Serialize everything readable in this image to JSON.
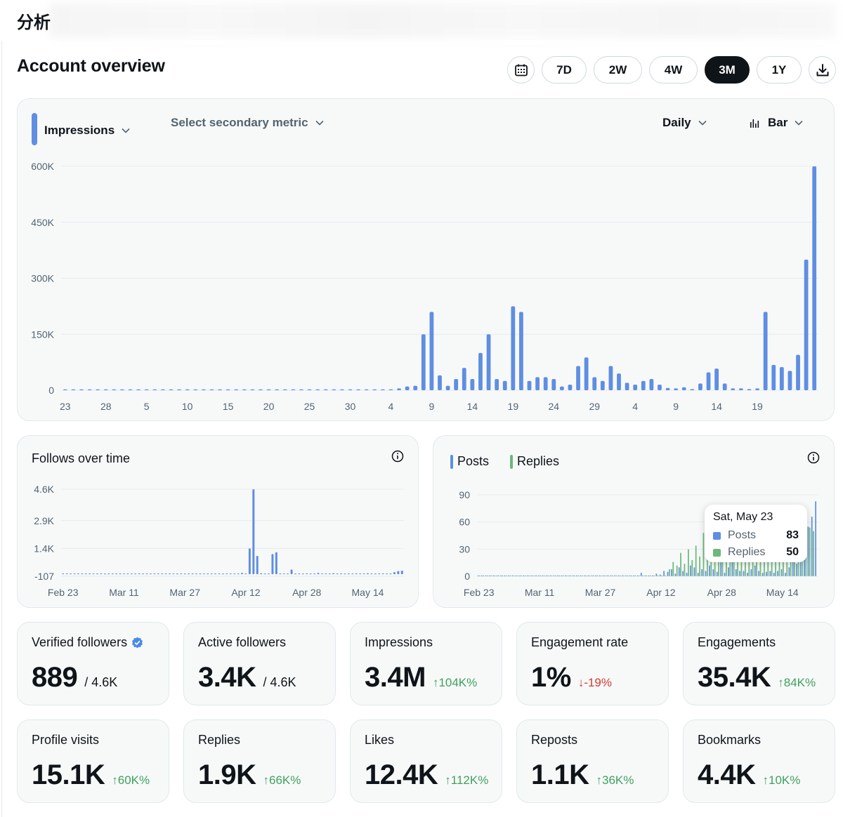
{
  "app": {
    "title": "分析"
  },
  "overview": {
    "title": "Account overview",
    "ranges": [
      "7D",
      "2W",
      "4W",
      "3M",
      "1Y"
    ],
    "active_range": "3M"
  },
  "main_chart": {
    "primary_metric": "Impressions",
    "secondary_metric_placeholder": "Select secondary metric",
    "granularity": "Daily",
    "chart_type_label": "Bar"
  },
  "follows_card": {
    "title": "Follows over time"
  },
  "posts_card": {
    "legend": [
      {
        "name": "Posts",
        "color": "#5f8ee2"
      },
      {
        "name": "Replies",
        "color": "#6cb87b"
      }
    ],
    "tooltip": {
      "date": "Sat, May 23",
      "posts_label": "Posts",
      "posts_value": "83",
      "replies_label": "Replies",
      "replies_value": "50"
    }
  },
  "stats": [
    {
      "label": "Verified followers",
      "value": "889",
      "total": "/ 4.6K",
      "verified": true
    },
    {
      "label": "Active followers",
      "value": "3.4K",
      "total": "/ 4.6K"
    },
    {
      "label": "Impressions",
      "value": "3.4M",
      "delta": "104K%",
      "direction": "up"
    },
    {
      "label": "Engagement rate",
      "value": "1%",
      "delta": "-19%",
      "direction": "down"
    },
    {
      "label": "Engagements",
      "value": "35.4K",
      "delta": "84K%",
      "direction": "up"
    },
    {
      "label": "Profile visits",
      "value": "15.1K",
      "delta": "60K%",
      "direction": "up"
    },
    {
      "label": "Replies",
      "value": "1.9K",
      "delta": "66K%",
      "direction": "up"
    },
    {
      "label": "Likes",
      "value": "12.4K",
      "delta": "112K%",
      "direction": "up"
    },
    {
      "label": "Reposts",
      "value": "1.1K",
      "delta": "36K%",
      "direction": "up"
    },
    {
      "label": "Bookmarks",
      "value": "4.4K",
      "delta": "10K%",
      "direction": "up"
    }
  ],
  "colors": {
    "accent": "#5f8ee2",
    "replies": "#6cb87b",
    "up": "#3fa15d",
    "down": "#d43a2f"
  },
  "chart_data": [
    {
      "type": "bar",
      "title": "",
      "ylim": [
        0,
        600000
      ],
      "yticks": [
        "0",
        "150K",
        "300K",
        "450K",
        "600K"
      ],
      "ytick_values": [
        0,
        150000,
        300000,
        450000,
        600000
      ],
      "xticks": [
        "23",
        "28",
        "5",
        "10",
        "15",
        "20",
        "25",
        "30",
        "4",
        "9",
        "14",
        "19",
        "24",
        "29",
        "4",
        "9",
        "14",
        "19"
      ],
      "xtick_index": [
        0,
        5,
        10,
        15,
        20,
        25,
        30,
        35,
        40,
        45,
        50,
        55,
        60,
        65,
        70,
        75,
        80,
        85
      ],
      "series": [
        {
          "name": "Impressions",
          "values": [
            200,
            200,
            200,
            200,
            200,
            300,
            300,
            200,
            200,
            200,
            200,
            200,
            200,
            200,
            0,
            200,
            200,
            200,
            200,
            200,
            200,
            200,
            200,
            200,
            200,
            200,
            200,
            200,
            200,
            200,
            200,
            200,
            200,
            200,
            500,
            500,
            500,
            200,
            200,
            500,
            1000,
            5000,
            10000,
            12000,
            150000,
            210000,
            40000,
            12000,
            30000,
            60000,
            30000,
            100000,
            150000,
            30000,
            25000,
            225000,
            210000,
            25000,
            35000,
            35000,
            30000,
            10000,
            15000,
            65000,
            88000,
            35000,
            25000,
            65000,
            45000,
            20000,
            15000,
            25000,
            30000,
            15000,
            6000,
            5000,
            8000,
            3000,
            18000,
            48000,
            58000,
            18000,
            5000,
            5000,
            3000,
            5000,
            210000,
            68000,
            62000,
            52000,
            95000,
            350000,
            600000
          ]
        }
      ]
    },
    {
      "type": "bar",
      "title": "Follows over time",
      "ylim": [
        -107,
        4600
      ],
      "yticks": [
        "-107",
        "1.4K",
        "2.9K",
        "4.6K"
      ],
      "ytick_values": [
        -107,
        1400,
        2900,
        4600
      ],
      "xticks": [
        "Feb 23",
        "Mar 11",
        "Mar 27",
        "Apr 12",
        "Apr 28",
        "May 14"
      ],
      "xtick_index": [
        0,
        16,
        32,
        48,
        64,
        80
      ],
      "series": [
        {
          "name": "Follows",
          "values": [
            5,
            5,
            5,
            5,
            5,
            5,
            5,
            5,
            5,
            5,
            5,
            5,
            5,
            5,
            5,
            5,
            5,
            5,
            5,
            5,
            5,
            5,
            5,
            5,
            5,
            5,
            5,
            5,
            5,
            5,
            5,
            5,
            5,
            5,
            5,
            5,
            5,
            5,
            5,
            5,
            5,
            5,
            5,
            5,
            5,
            5,
            20,
            80,
            20,
            1400,
            4600,
            1000,
            60,
            20,
            10,
            1100,
            1200,
            40,
            20,
            20,
            260,
            40,
            30,
            20,
            50,
            30,
            40,
            80,
            30,
            20,
            40,
            60,
            20,
            30,
            30,
            40,
            20,
            50,
            40,
            30,
            60,
            20,
            40,
            30,
            50,
            20,
            40,
            120,
            180,
            200
          ]
        }
      ]
    },
    {
      "type": "bar",
      "title": "",
      "ylim": [
        0,
        90
      ],
      "yticks": [
        "0",
        "30",
        "60",
        "90"
      ],
      "ytick_values": [
        0,
        30,
        60,
        90
      ],
      "xticks": [
        "Feb 23",
        "Mar 11",
        "Mar 27",
        "Apr 12",
        "Apr 28",
        "May 14"
      ],
      "xtick_index": [
        0,
        16,
        32,
        48,
        64,
        80
      ],
      "series": [
        {
          "name": "Posts",
          "values": [
            0,
            0,
            1,
            0,
            0,
            0,
            1,
            0,
            0,
            0,
            0,
            0,
            0,
            0,
            0,
            0,
            0,
            0,
            0,
            0,
            0,
            0,
            0,
            0,
            0,
            0,
            0,
            0,
            0,
            0,
            0,
            0,
            0,
            0,
            0,
            0,
            0,
            0,
            0,
            0,
            0,
            0,
            0,
            4,
            0,
            1,
            0,
            3,
            2,
            6,
            5,
            8,
            3,
            10,
            6,
            4,
            12,
            10,
            4,
            8,
            6,
            12,
            8,
            5,
            16,
            4,
            10,
            18,
            8,
            6,
            6,
            4,
            8,
            12,
            6,
            4,
            5,
            6,
            4,
            6,
            8,
            4,
            10,
            20,
            14,
            22,
            28,
            55,
            66,
            83
          ]
        },
        {
          "name": "Replies",
          "values": [
            0,
            0,
            0,
            0,
            0,
            0,
            0,
            0,
            0,
            0,
            0,
            0,
            0,
            0,
            0,
            0,
            0,
            0,
            0,
            0,
            0,
            0,
            0,
            0,
            0,
            0,
            0,
            0,
            0,
            0,
            0,
            0,
            0,
            0,
            0,
            0,
            0,
            0,
            0,
            0,
            0,
            0,
            0,
            0,
            0,
            0,
            0,
            0,
            0,
            0,
            8,
            16,
            12,
            26,
            14,
            30,
            18,
            34,
            22,
            48,
            20,
            36,
            24,
            44,
            30,
            22,
            50,
            26,
            34,
            28,
            40,
            22,
            30,
            46,
            26,
            34,
            24,
            38,
            20,
            28,
            36,
            24,
            44,
            20,
            30,
            60,
            38,
            54,
            50
          ]
        }
      ]
    }
  ]
}
